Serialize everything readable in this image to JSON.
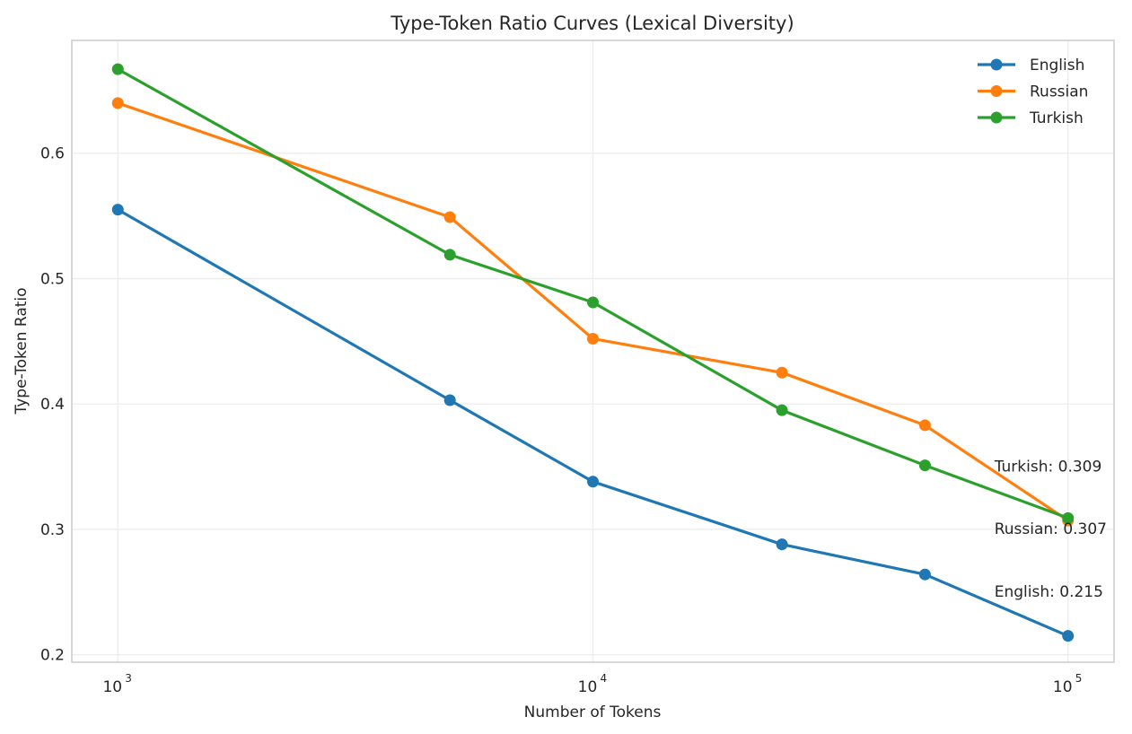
{
  "chart_data": {
    "type": "line",
    "title": "Type-Token Ratio Curves (Lexical Diversity)",
    "xlabel": "Number of Tokens",
    "ylabel": "Type-Token Ratio",
    "xscale": "log",
    "xlim": [
      800,
      125000
    ],
    "ylim": [
      0.194,
      0.69
    ],
    "xticks": [
      1000,
      10000,
      100000
    ],
    "xtick_labels": [
      {
        "base": "10",
        "exp": "3"
      },
      {
        "base": "10",
        "exp": "4"
      },
      {
        "base": "10",
        "exp": "5"
      }
    ],
    "yticks": [
      0.2,
      0.3,
      0.4,
      0.5,
      0.6
    ],
    "ytick_labels": [
      "0.2",
      "0.3",
      "0.4",
      "0.5",
      "0.6"
    ],
    "grid": true,
    "legend_position": "top-right",
    "x": [
      1000,
      5000,
      10000,
      25000,
      50000,
      100000
    ],
    "series": [
      {
        "name": "English",
        "color": "#1f77b4",
        "values": [
          0.555,
          0.403,
          0.338,
          0.288,
          0.264,
          0.215
        ]
      },
      {
        "name": "Russian",
        "color": "#ff7f0e",
        "values": [
          0.64,
          0.549,
          0.452,
          0.425,
          0.383,
          0.307
        ]
      },
      {
        "name": "Turkish",
        "color": "#2ca02c",
        "values": [
          0.667,
          0.519,
          0.481,
          0.395,
          0.351,
          0.309
        ]
      }
    ],
    "annotations": [
      {
        "text": "English: 0.215",
        "x": 70000,
        "y": 0.2505
      },
      {
        "text": "Russian: 0.307",
        "x": 70000,
        "y": 0.3005
      },
      {
        "text": "Turkish: 0.309",
        "x": 70000,
        "y": 0.3505
      }
    ]
  }
}
